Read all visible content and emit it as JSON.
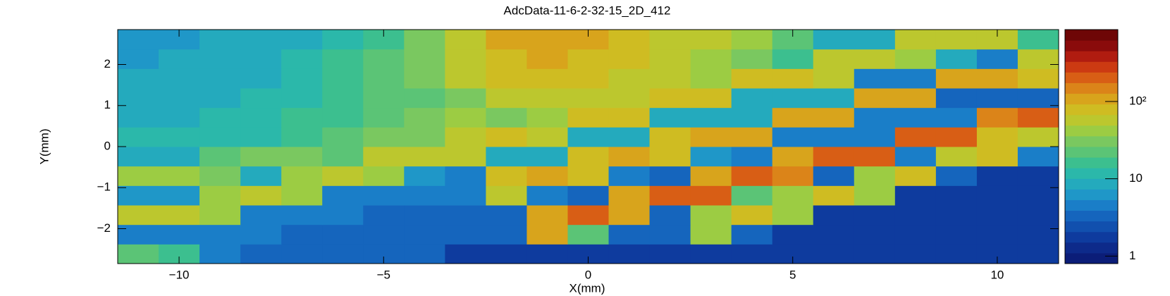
{
  "chart_data": {
    "type": "heatmap",
    "title": "AdcData-11-6-2-32-15_2D_412",
    "x_label": "X(mm)",
    "y_label": "Y(mm)",
    "xlim": [
      -11.5,
      11.5
    ],
    "ylim": [
      -2.85,
      2.85
    ],
    "xticks": [
      {
        "value": -10,
        "label": "−10"
      },
      {
        "value": -5,
        "label": "−5"
      },
      0,
      5,
      10
    ],
    "yticks": [
      {
        "value": -2,
        "label": "−2"
      },
      {
        "value": -1,
        "label": "−1"
      },
      0,
      1,
      2
    ],
    "zlim": [
      0.8,
      850
    ],
    "zlog": true,
    "zticks": [
      1,
      10,
      {
        "value": 100,
        "label": "10²"
      }
    ],
    "colormap": [
      "#0b1d78",
      "#0d2a8a",
      "#0e3b9e",
      "#1150ae",
      "#1565bd",
      "#1a7ec8",
      "#1f97c8",
      "#24aabd",
      "#2bb8aa",
      "#3cbf8f",
      "#5bc476",
      "#7ac860",
      "#9ccc43",
      "#bcc72e",
      "#cfbc22",
      "#d8a41c",
      "#db8419",
      "#d85e15",
      "#cc3a12",
      "#b01c10",
      "#8a0b0b",
      "#6e0606"
    ],
    "xbins": [
      -11.5,
      -10.5,
      -9.5,
      -8.5,
      -7.5,
      -6.5,
      -5.5,
      -4.5,
      -3.5,
      -2.5,
      -1.5,
      -0.5,
      0.5,
      1.5,
      2.5,
      3.5,
      4.5,
      5.5,
      6.5,
      7.5,
      8.5,
      9.5,
      10.5,
      11.5
    ],
    "ybins": [
      -2.85,
      -2.375,
      -1.9,
      -1.425,
      -0.95,
      -0.475,
      0,
      0.475,
      0.95,
      1.425,
      1.9,
      2.375,
      2.85
    ],
    "z": [
      [
        20,
        15,
        4,
        3,
        3,
        3,
        3,
        3,
        2,
        2,
        2,
        2,
        2,
        2,
        2,
        2,
        2,
        2,
        2,
        2,
        2,
        2,
        2
      ],
      [
        5,
        5,
        4,
        4,
        3,
        3,
        3,
        3,
        3,
        3,
        100,
        20,
        3,
        3,
        40,
        3,
        2,
        2,
        2,
        2,
        2,
        2,
        2
      ],
      [
        60,
        60,
        40,
        5,
        4,
        4,
        3,
        3,
        3,
        3,
        100,
        200,
        120,
        3,
        40,
        70,
        40,
        2,
        2,
        2,
        2,
        2,
        2
      ],
      [
        6,
        6,
        40,
        60,
        40,
        5,
        4,
        4,
        4,
        50,
        4,
        3,
        120,
        200,
        180,
        20,
        40,
        70,
        40,
        2,
        2,
        2,
        2
      ],
      [
        40,
        40,
        30,
        8,
        40,
        60,
        40,
        6,
        5,
        80,
        100,
        70,
        4,
        3,
        100,
        200,
        150,
        3,
        40,
        70,
        3,
        2,
        2
      ],
      [
        10,
        10,
        25,
        30,
        30,
        20,
        50,
        60,
        50,
        8,
        8,
        80,
        100,
        70,
        6,
        4,
        100,
        200,
        200,
        5,
        60,
        70,
        4
      ],
      [
        12,
        12,
        12,
        12,
        15,
        25,
        35,
        30,
        60,
        70,
        60,
        10,
        10,
        80,
        120,
        100,
        5,
        4,
        4,
        200,
        220,
        80,
        60
      ],
      [
        10,
        10,
        12,
        12,
        15,
        18,
        22,
        35,
        40,
        35,
        45,
        70,
        70,
        10,
        10,
        10,
        110,
        120,
        4,
        4,
        4,
        150,
        200
      ],
      [
        10,
        10,
        10,
        12,
        12,
        15,
        20,
        25,
        30,
        50,
        60,
        60,
        50,
        70,
        70,
        8,
        8,
        8,
        100,
        110,
        3,
        3,
        3
      ],
      [
        8,
        8,
        10,
        10,
        12,
        15,
        20,
        30,
        50,
        70,
        80,
        70,
        60,
        60,
        40,
        70,
        70,
        50,
        5,
        5,
        100,
        120,
        80
      ],
      [
        6,
        8,
        8,
        10,
        12,
        15,
        20,
        35,
        60,
        90,
        100,
        90,
        70,
        50,
        40,
        30,
        15,
        60,
        60,
        40,
        8,
        5,
        60
      ],
      [
        6,
        6,
        8,
        8,
        10,
        12,
        18,
        30,
        60,
        100,
        120,
        110,
        80,
        60,
        50,
        40,
        20,
        10,
        10,
        50,
        60,
        60,
        15
      ]
    ]
  }
}
